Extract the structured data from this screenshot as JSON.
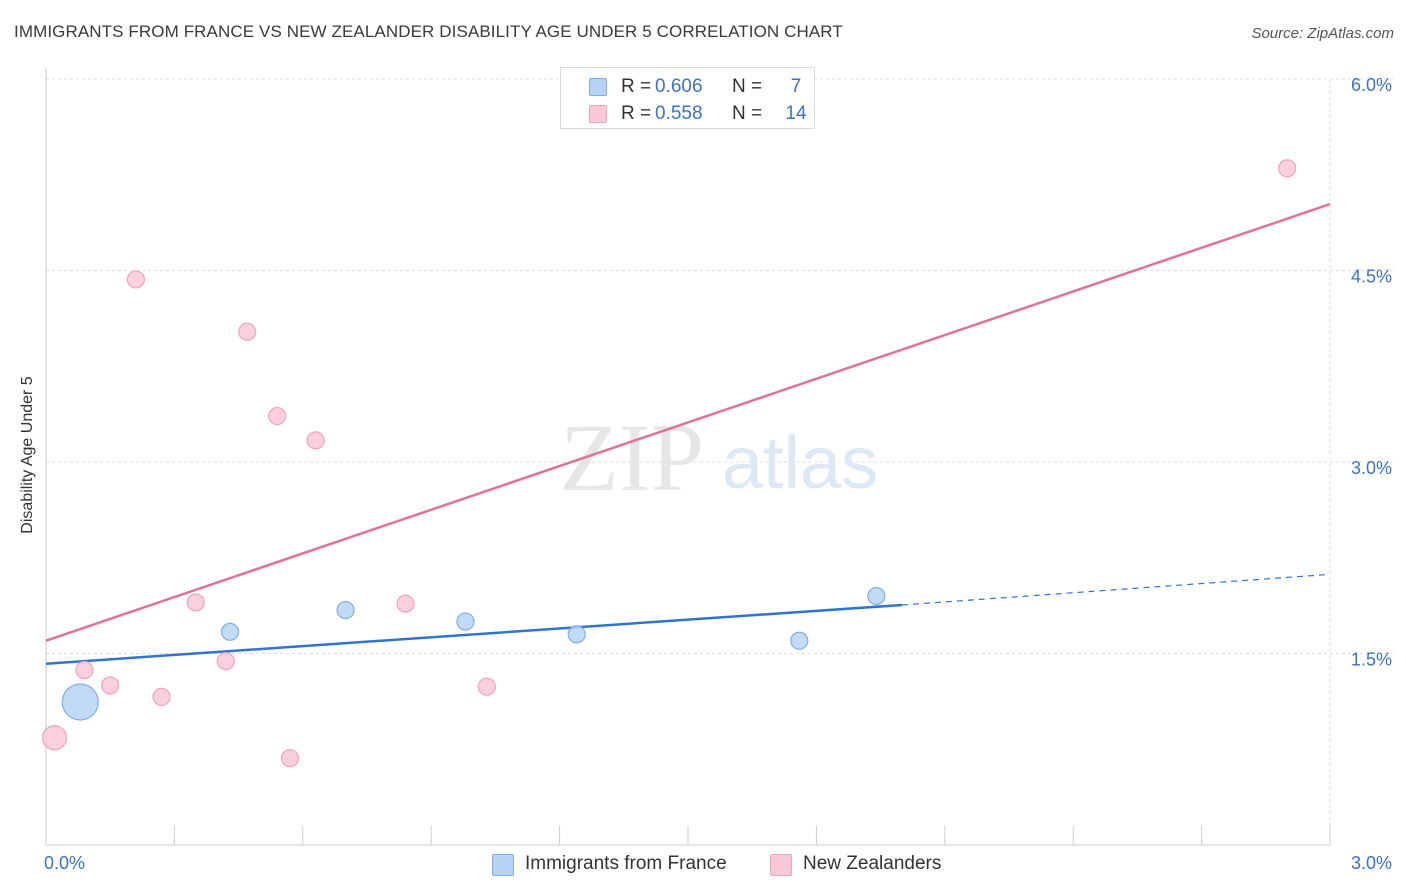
{
  "title": "IMMIGRANTS FROM FRANCE VS NEW ZEALANDER DISABILITY AGE UNDER 5 CORRELATION CHART",
  "source": "Source: ZipAtlas.com",
  "watermark": {
    "zip": "ZIP",
    "atlas": "atlas"
  },
  "legend_top": {
    "rows": [
      {
        "r_label": "R =",
        "r_value": "0.606",
        "n_label": "N =",
        "n_value": "7"
      },
      {
        "r_label": "R =",
        "r_value": "0.558",
        "n_label": "N =",
        "n_value": "14"
      }
    ]
  },
  "colors": {
    "blue_fill": "#b8d4f4",
    "blue_stroke": "#7eaee6",
    "blue_line": "#2f74d0",
    "pink_fill": "#f9c8d6",
    "pink_stroke": "#f0a3bb",
    "pink_line": "#e07298",
    "tick_text": "#3a72c4",
    "grid": "#dddddd"
  },
  "chart_data": {
    "type": "scatter",
    "title": "IMMIGRANTS FROM FRANCE VS NEW ZEALANDER DISABILITY AGE UNDER 5 CORRELATION CHART",
    "xlabel": "",
    "ylabel": "Disability Age Under 5",
    "xlim": [
      0,
      3.0
    ],
    "ylim": [
      0,
      6.0
    ],
    "x_tick_labels": [
      "0.0%",
      "3.0%"
    ],
    "y_ticks": [
      1.5,
      3.0,
      4.5,
      6.0
    ],
    "y_tick_labels": [
      "1.5%",
      "3.0%",
      "4.5%",
      "6.0%"
    ],
    "grid": true,
    "legend": [
      "Immigrants from France",
      "New Zealanders"
    ],
    "series": [
      {
        "name": "Immigrants from France",
        "color": "blue",
        "points": [
          {
            "x": 0.08,
            "y": 1.12,
            "size": 3
          },
          {
            "x": 0.43,
            "y": 1.67,
            "size": 1
          },
          {
            "x": 0.7,
            "y": 1.84,
            "size": 1
          },
          {
            "x": 0.98,
            "y": 1.75,
            "size": 1
          },
          {
            "x": 1.24,
            "y": 1.65,
            "size": 1
          },
          {
            "x": 1.76,
            "y": 1.6,
            "size": 1
          },
          {
            "x": 1.94,
            "y": 1.95,
            "size": 1
          }
        ],
        "trend": {
          "x0": 0.0,
          "y0": 1.42,
          "x1": 2.0,
          "y1": 1.88,
          "dash_to_x": 3.0,
          "dash_to_y": 2.12
        }
      },
      {
        "name": "New Zealanders",
        "color": "pink",
        "points": [
          {
            "x": 0.02,
            "y": 0.84,
            "size": 2
          },
          {
            "x": 0.09,
            "y": 1.37,
            "size": 1
          },
          {
            "x": 0.15,
            "y": 1.25,
            "size": 1
          },
          {
            "x": 0.21,
            "y": 4.43,
            "size": 1
          },
          {
            "x": 0.27,
            "y": 1.16,
            "size": 1
          },
          {
            "x": 0.35,
            "y": 1.9,
            "size": 1
          },
          {
            "x": 0.42,
            "y": 1.44,
            "size": 1
          },
          {
            "x": 0.47,
            "y": 4.02,
            "size": 1
          },
          {
            "x": 0.54,
            "y": 3.36,
            "size": 1
          },
          {
            "x": 0.57,
            "y": 0.68,
            "size": 1
          },
          {
            "x": 0.63,
            "y": 3.17,
            "size": 1
          },
          {
            "x": 0.84,
            "y": 1.89,
            "size": 1
          },
          {
            "x": 1.03,
            "y": 1.24,
            "size": 1
          },
          {
            "x": 2.9,
            "y": 5.3,
            "size": 1
          }
        ],
        "trend": {
          "x0": 0.0,
          "y0": 1.6,
          "x1": 3.0,
          "y1": 5.02
        }
      }
    ]
  }
}
